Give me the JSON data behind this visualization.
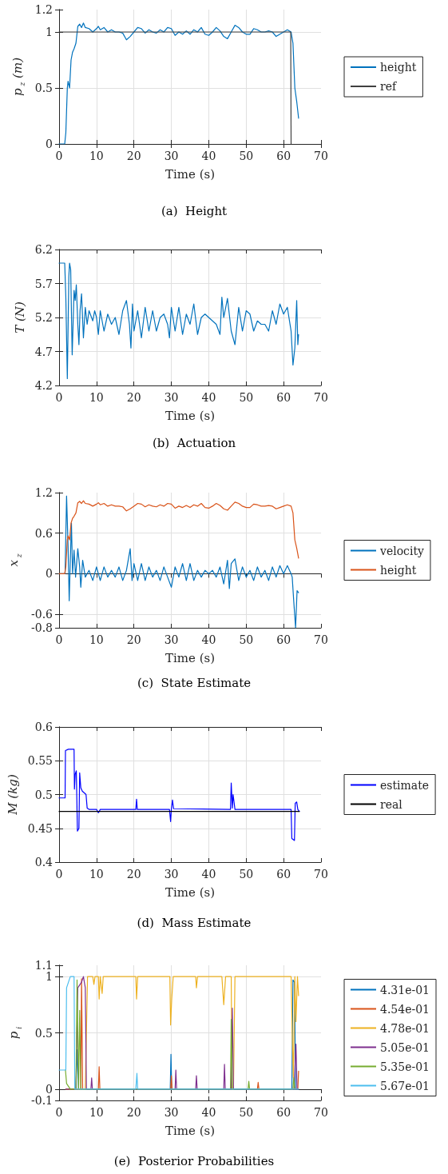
{
  "chart_data": [
    {
      "type": "line",
      "title": "(a)  Height",
      "xlabel": "Time (s)",
      "ylabel": "p$_{z}$ (m)",
      "xlim": [
        0,
        70
      ],
      "xticks": [
        0,
        10,
        20,
        30,
        40,
        50,
        60,
        70
      ],
      "ylim": [
        0,
        1.2
      ],
      "yticks": [
        0,
        0.5,
        1,
        1.2
      ],
      "grid": true,
      "legend": "right",
      "series": [
        {
          "name": "height",
          "color": "#0072bd",
          "x": [
            0,
            1.5,
            1.8,
            2.2,
            2.4,
            2.8,
            3.2,
            3.6,
            4,
            4.5,
            5,
            5.5,
            6,
            6.5,
            7,
            8,
            9,
            10,
            10.5,
            11,
            12,
            13,
            14,
            15,
            16,
            17,
            18,
            19,
            20,
            21,
            22,
            23,
            24,
            25,
            26,
            27,
            28,
            29,
            30,
            31,
            32,
            33,
            34,
            35,
            36,
            37,
            38,
            39,
            40,
            41,
            42,
            43,
            44,
            45,
            46,
            47,
            48,
            49,
            50,
            51,
            52,
            53,
            54,
            55,
            56,
            57,
            58,
            59,
            60,
            61,
            62,
            62.5,
            63,
            63.5,
            64
          ],
          "values": [
            0,
            0,
            0.1,
            0.5,
            0.56,
            0.5,
            0.75,
            0.82,
            0.85,
            0.9,
            1.05,
            1.07,
            1.04,
            1.08,
            1.04,
            1.03,
            1.0,
            1.03,
            1.05,
            1.02,
            1.04,
            1.0,
            1.02,
            1.0,
            1.0,
            0.99,
            0.93,
            0.96,
            1.0,
            1.04,
            1.03,
            0.99,
            1.02,
            1.0,
            0.99,
            1.02,
            1.0,
            1.04,
            1.03,
            0.97,
            1.0,
            0.98,
            1.01,
            0.98,
            1.02,
            1.0,
            1.04,
            0.98,
            0.97,
            1.0,
            1.04,
            1.01,
            0.96,
            0.94,
            1.0,
            1.06,
            1.04,
            1.0,
            0.98,
            0.98,
            1.03,
            1.02,
            1.0,
            1.0,
            1.01,
            1.0,
            0.96,
            0.98,
            1.0,
            1.02,
            1.0,
            0.9,
            0.5,
            0.38,
            0.23
          ]
        },
        {
          "name": "ref",
          "color": "#404040",
          "x": [
            0,
            61.9,
            62
          ],
          "values": [
            1,
            1,
            0
          ]
        }
      ]
    },
    {
      "type": "line",
      "title": "(b)  Actuation",
      "xlabel": "Time (s)",
      "ylabel": "T (N)",
      "xlim": [
        0,
        70
      ],
      "xticks": [
        0,
        10,
        20,
        30,
        40,
        50,
        60,
        70
      ],
      "ylim": [
        4.2,
        6.2
      ],
      "yticks": [
        4.2,
        4.7,
        5.2,
        5.7,
        6.2
      ],
      "grid": true,
      "series": [
        {
          "color": "#0072bd",
          "x": [
            0,
            1.5,
            1.8,
            2.2,
            2.6,
            2.8,
            3.1,
            3.5,
            4,
            4.3,
            4.6,
            5,
            5.3,
            5.6,
            6,
            6.5,
            7,
            7.5,
            8,
            9,
            9.5,
            10,
            10.5,
            11,
            12,
            13,
            14,
            15,
            16,
            17,
            18,
            18.8,
            19.2,
            19.6,
            20,
            21,
            22,
            23,
            24,
            25,
            26,
            27,
            28,
            29,
            29.5,
            30,
            31,
            32,
            33,
            34,
            35,
            36,
            37,
            38,
            39,
            40,
            41,
            42,
            43,
            43.5,
            44,
            45,
            46,
            47,
            48,
            49,
            50,
            51,
            52,
            53,
            54,
            55,
            56,
            57,
            58,
            59,
            60,
            61,
            62,
            62.5,
            63,
            63.5,
            63.8,
            64
          ],
          "values": [
            6.0,
            6.0,
            5.5,
            4.3,
            5.8,
            6.0,
            5.9,
            4.65,
            5.6,
            5.45,
            5.68,
            5.1,
            4.8,
            5.3,
            5.55,
            4.9,
            5.35,
            5.1,
            5.3,
            5.15,
            5.3,
            5.2,
            4.95,
            5.3,
            5.0,
            5.25,
            5.1,
            5.2,
            4.95,
            5.3,
            5.45,
            5.1,
            4.75,
            5.4,
            5.0,
            5.3,
            4.9,
            5.35,
            5.0,
            5.3,
            5.0,
            5.2,
            5.25,
            5.1,
            4.9,
            5.35,
            5.0,
            5.35,
            4.95,
            5.25,
            5.1,
            5.4,
            4.95,
            5.2,
            5.25,
            5.2,
            5.15,
            5.1,
            4.95,
            5.5,
            5.2,
            5.48,
            5.0,
            4.8,
            5.35,
            5.0,
            5.3,
            5.25,
            5.0,
            5.15,
            5.1,
            5.1,
            5.0,
            5.3,
            5.1,
            5.4,
            5.25,
            5.35,
            5.0,
            4.5,
            4.75,
            5.45,
            4.8,
            4.95
          ]
        }
      ]
    },
    {
      "type": "line",
      "title": "(c)  State Estimate",
      "xlabel": "Time (s)",
      "ylabel": "x$_{z}$",
      "xlim": [
        0,
        70
      ],
      "xticks": [
        0,
        10,
        20,
        30,
        40,
        50,
        60,
        70
      ],
      "ylim": [
        -0.8,
        1.2
      ],
      "yticks": [
        -0.8,
        -0.6,
        0,
        0.6,
        1.2
      ],
      "grid": true,
      "legend": "right",
      "series": [
        {
          "name": "velocity",
          "color": "#0072bd",
          "x": [
            0,
            1.6,
            2,
            2.4,
            2.7,
            3,
            3.3,
            3.6,
            4,
            4.4,
            5,
            5.5,
            5.8,
            6.3,
            7,
            8,
            9,
            10,
            11,
            12,
            13,
            14,
            15,
            16,
            17,
            18,
            19,
            19.5,
            20,
            21,
            22,
            23,
            24,
            25,
            26,
            27,
            28,
            29,
            30,
            31,
            32,
            33,
            34,
            35,
            36,
            37,
            38,
            39,
            40,
            41,
            42,
            43,
            44,
            45,
            45.5,
            46,
            47,
            48,
            49,
            50,
            51,
            52,
            53,
            54,
            55,
            56,
            57,
            58,
            59,
            60,
            61,
            62,
            62.3,
            62.7,
            63.2,
            63.6,
            64
          ],
          "values": [
            0,
            0,
            1.15,
            0.4,
            -0.4,
            0.2,
            0.75,
            0.0,
            0.35,
            -0.05,
            0.37,
            0.1,
            -0.2,
            0.2,
            -0.05,
            0.05,
            -0.1,
            0.1,
            -0.1,
            0.1,
            -0.05,
            0.05,
            -0.05,
            0.1,
            -0.1,
            0.05,
            0.37,
            -0.1,
            0.15,
            -0.1,
            0.15,
            -0.1,
            0.1,
            -0.05,
            0.05,
            -0.1,
            0.1,
            -0.05,
            -0.2,
            0.1,
            -0.05,
            0.15,
            -0.1,
            0.15,
            -0.1,
            0.05,
            -0.05,
            0.05,
            0.0,
            0.05,
            -0.05,
            0.1,
            -0.15,
            0.2,
            -0.22,
            0.15,
            0.22,
            -0.1,
            0.1,
            -0.05,
            0.05,
            -0.1,
            0.1,
            -0.05,
            0.05,
            -0.1,
            0.1,
            -0.05,
            0.12,
            0.0,
            0.12,
            0.0,
            -0.05,
            -0.4,
            -0.8,
            -0.25,
            -0.28
          ]
        },
        {
          "name": "height",
          "color": "#d95319",
          "x": [
            0,
            1.5,
            1.8,
            2.2,
            2.4,
            2.8,
            3.2,
            3.6,
            4,
            4.5,
            5,
            5.5,
            6,
            6.5,
            7,
            8,
            9,
            10,
            10.5,
            11,
            12,
            13,
            14,
            15,
            16,
            17,
            18,
            19,
            20,
            21,
            22,
            23,
            24,
            25,
            26,
            27,
            28,
            29,
            30,
            31,
            32,
            33,
            34,
            35,
            36,
            37,
            38,
            39,
            40,
            41,
            42,
            43,
            44,
            45,
            46,
            47,
            48,
            49,
            50,
            51,
            52,
            53,
            54,
            55,
            56,
            57,
            58,
            59,
            60,
            61,
            62,
            62.5,
            63,
            63.5,
            64
          ],
          "values": [
            0,
            0,
            0.1,
            0.5,
            0.56,
            0.5,
            0.75,
            0.82,
            0.85,
            0.9,
            1.05,
            1.07,
            1.04,
            1.08,
            1.04,
            1.03,
            1.0,
            1.03,
            1.05,
            1.02,
            1.04,
            1.0,
            1.02,
            1.0,
            1.0,
            0.99,
            0.93,
            0.96,
            1.0,
            1.04,
            1.03,
            0.99,
            1.02,
            1.0,
            0.99,
            1.02,
            1.0,
            1.04,
            1.03,
            0.97,
            1.0,
            0.98,
            1.01,
            0.98,
            1.02,
            1.0,
            1.04,
            0.98,
            0.97,
            1.0,
            1.04,
            1.01,
            0.96,
            0.94,
            1.0,
            1.06,
            1.04,
            1.0,
            0.98,
            0.98,
            1.03,
            1.02,
            1.0,
            1.0,
            1.01,
            1.0,
            0.96,
            0.98,
            1.0,
            1.02,
            1.0,
            0.9,
            0.5,
            0.38,
            0.23
          ]
        }
      ]
    },
    {
      "type": "line",
      "title": "(d)  Mass Estimate",
      "xlabel": "Time (s)",
      "ylabel": "M (kg)",
      "xlim": [
        0,
        70
      ],
      "xticks": [
        0,
        10,
        20,
        30,
        40,
        50,
        60,
        70
      ],
      "ylim": [
        0.4,
        0.6
      ],
      "yticks": [
        0.4,
        0.45,
        0.5,
        0.55,
        0.6
      ],
      "grid": true,
      "legend": "right",
      "series": [
        {
          "name": "estimate",
          "color": "#0000ff",
          "x": [
            0,
            1.6,
            1.7,
            2.5,
            4,
            4.1,
            4.3,
            4.6,
            4.9,
            5.3,
            5.5,
            5.8,
            6.2,
            6.8,
            7.2,
            7.5,
            8,
            10,
            10.5,
            11,
            20.5,
            20.7,
            20.9,
            29.5,
            29.8,
            30,
            30.3,
            30.6,
            45.8,
            46,
            46.3,
            46.5,
            47,
            62,
            62.2,
            62.9,
            63.1,
            63.5,
            63.8,
            64.2
          ],
          "values": [
            0.495,
            0.495,
            0.565,
            0.567,
            0.567,
            0.508,
            0.53,
            0.535,
            0.446,
            0.45,
            0.532,
            0.51,
            0.505,
            0.502,
            0.5,
            0.48,
            0.478,
            0.478,
            0.473,
            0.478,
            0.478,
            0.493,
            0.478,
            0.478,
            0.46,
            0.478,
            0.492,
            0.479,
            0.478,
            0.517,
            0.48,
            0.5,
            0.478,
            0.478,
            0.435,
            0.432,
            0.487,
            0.489,
            0.478,
            0.475
          ]
        },
        {
          "name": "real",
          "color": "#000000",
          "x": [
            0,
            64.2
          ],
          "values": [
            0.475,
            0.475
          ]
        }
      ]
    },
    {
      "type": "line",
      "title": "(e)  Posterior Probabilities",
      "xlabel": "Time (s)",
      "ylabel": "p$_{i}$",
      "xlim": [
        0,
        70
      ],
      "xticks": [
        0,
        10,
        20,
        30,
        40,
        50,
        60,
        70
      ],
      "ylim": [
        -0.1,
        1.1
      ],
      "yticks": [
        -0.1,
        0,
        0.5,
        1,
        1.1
      ],
      "grid": true,
      "legend": "right",
      "series": [
        {
          "name": "4.31e-01",
          "color": "#0072bd",
          "x": [
            1.8,
            4.5,
            4.8,
            5.2,
            29.7,
            29.9,
            30.1,
            62.2,
            62.5,
            62.9,
            63.2,
            64
          ],
          "values": [
            0,
            0,
            0.35,
            0,
            0,
            0.31,
            0,
            0,
            0.97,
            0.95,
            0,
            0
          ]
        },
        {
          "name": "4.54e-01",
          "color": "#d95319",
          "x": [
            1.8,
            5.8,
            6,
            6.3,
            10.5,
            10.7,
            10.9,
            29.8,
            30,
            30.2,
            53,
            53.2,
            53.4,
            63.8,
            64
          ],
          "values": [
            0,
            0,
            0.98,
            0,
            0,
            0.2,
            0,
            0,
            0.12,
            0,
            0,
            0.06,
            0,
            0,
            0.16
          ]
        },
        {
          "name": "4.78e-01",
          "color": "#edb120",
          "x": [
            1.8,
            7,
            7.6,
            9,
            9.3,
            9.6,
            10.5,
            10.7,
            11,
            11.5,
            11.8,
            20.5,
            20.7,
            21,
            29.6,
            29.8,
            30.1,
            30.5,
            36.5,
            36.7,
            37,
            43.5,
            44,
            44.5,
            46,
            46.2,
            46.6,
            47,
            62,
            62.3,
            62.6,
            63,
            63.3,
            63.7,
            64
          ],
          "values": [
            0,
            0,
            1.0,
            1.0,
            0.93,
            1.0,
            1.0,
            0.8,
            1.0,
            0.85,
            1.0,
            1.0,
            0.8,
            1.0,
            1.0,
            0.57,
            0.8,
            1.0,
            1.0,
            0.9,
            1.0,
            1.0,
            0.75,
            1.0,
            1.0,
            0,
            0,
            1.0,
            1.0,
            0.5,
            0.1,
            1.0,
            0.6,
            1.0,
            0.83
          ]
        },
        {
          "name": "5.05e-01",
          "color": "#7e2f8e",
          "x": [
            1.8,
            4.5,
            5,
            6,
            6.5,
            7,
            7.3,
            8.5,
            8.7,
            8.9,
            31,
            31.2,
            31.4,
            36.5,
            36.7,
            36.9,
            44,
            44.2,
            44.4,
            46,
            46.3,
            46.6,
            62.8,
            63.3,
            63.6
          ],
          "values": [
            0,
            0,
            0.9,
            0.95,
            1.0,
            0.9,
            0,
            0,
            0.1,
            0,
            0,
            0.17,
            0,
            0,
            0.12,
            0,
            0,
            0.22,
            0,
            0,
            0.72,
            0,
            0,
            0.4,
            0
          ]
        },
        {
          "name": "5.35e-01",
          "color": "#77ac30",
          "x": [
            1.7,
            2,
            3,
            4.5,
            4.8,
            5.2,
            5.5,
            5.8,
            45.8,
            46,
            46.3,
            50.5,
            50.7,
            50.9,
            62.5,
            62.7,
            63
          ],
          "values": [
            0.17,
            0.05,
            0,
            0,
            0.97,
            0,
            0.7,
            0,
            0,
            0.62,
            0,
            0,
            0.07,
            0,
            0,
            0.1,
            0
          ]
        },
        {
          "name": "5.67e-01",
          "color": "#4dbeee",
          "x": [
            0,
            1.8,
            2,
            3,
            4,
            4.2,
            20.5,
            20.8,
            21,
            64
          ],
          "values": [
            0.17,
            0.17,
            0.9,
            1.0,
            1.0,
            0,
            0,
            0.14,
            0,
            0
          ]
        }
      ]
    }
  ]
}
